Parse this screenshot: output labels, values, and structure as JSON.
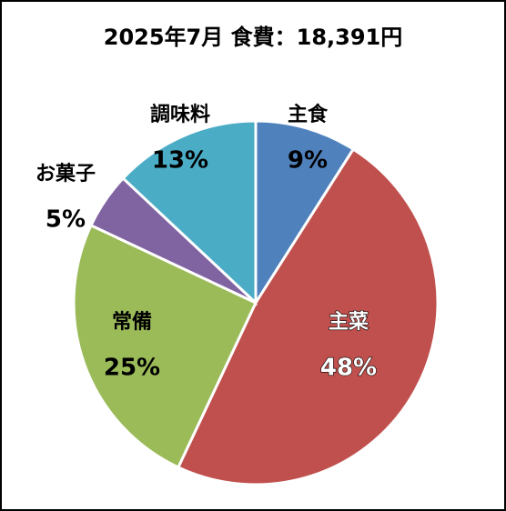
{
  "chart_data": {
    "type": "pie",
    "title": "2025年7月 食費：18,391円",
    "categories": [
      "主食",
      "主菜",
      "常備",
      "お菓子",
      "調味料"
    ],
    "values": [
      9,
      48,
      25,
      5,
      13
    ],
    "value_labels": [
      "9%",
      "48%",
      "25%",
      "5%",
      "13%"
    ],
    "colors": [
      "#4f81bd",
      "#c0504d",
      "#9bbb59",
      "#8064a2",
      "#4bacc6"
    ]
  }
}
